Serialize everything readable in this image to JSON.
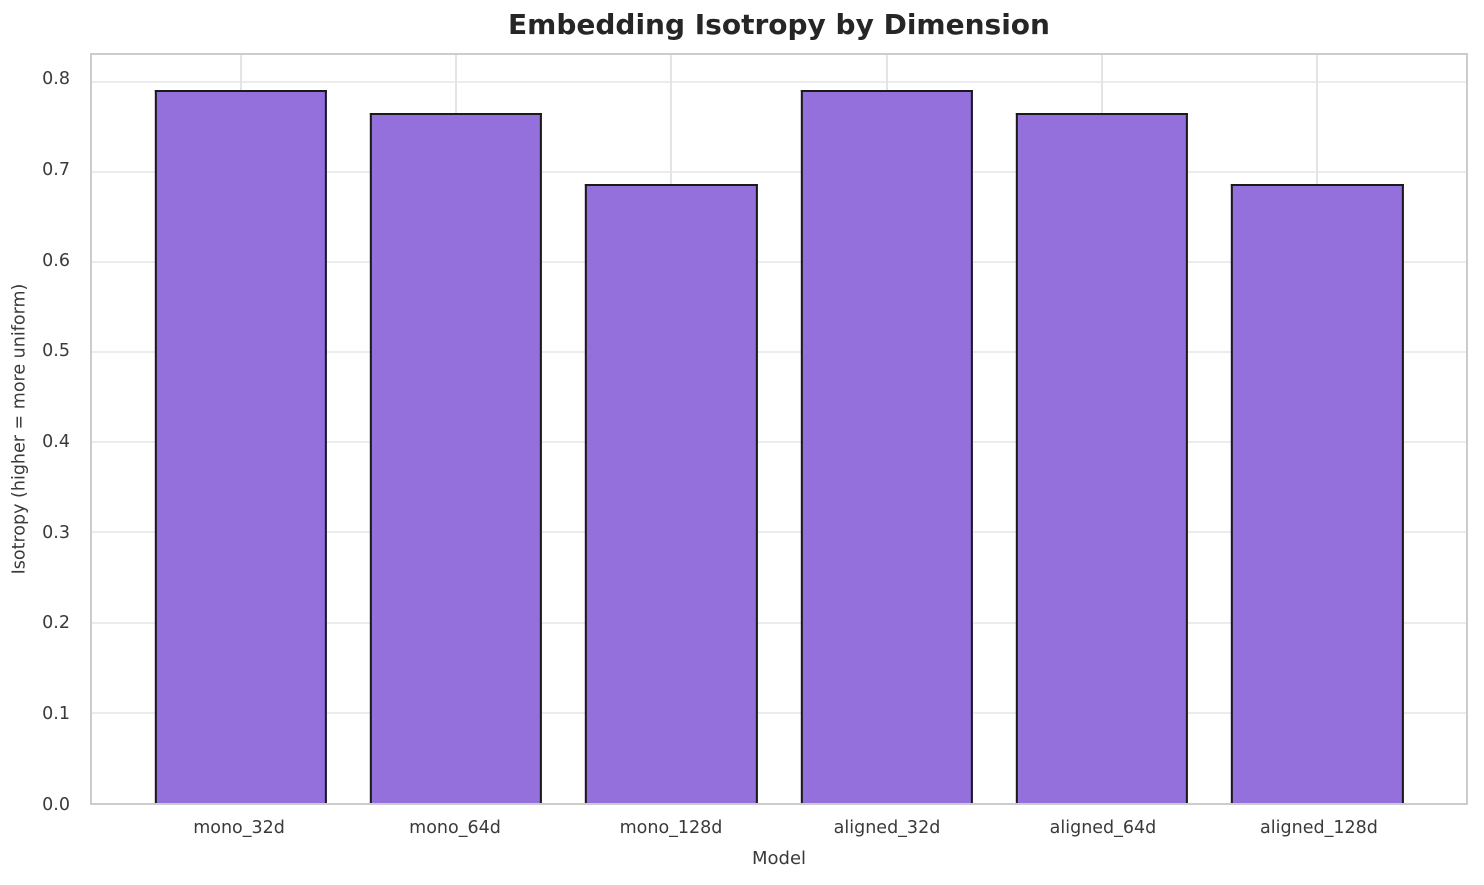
{
  "chart_data": {
    "type": "bar",
    "title": "Embedding Isotropy by Dimension",
    "xlabel": "Model",
    "ylabel": "Isotropy (higher = more uniform)",
    "categories": [
      "mono_32d",
      "mono_64d",
      "mono_128d",
      "aligned_32d",
      "aligned_64d",
      "aligned_128d"
    ],
    "values": [
      0.791,
      0.765,
      0.686,
      0.791,
      0.765,
      0.686
    ],
    "yticks": [
      "0.0",
      "0.1",
      "0.2",
      "0.3",
      "0.4",
      "0.5",
      "0.6",
      "0.7",
      "0.8"
    ],
    "ytick_values": [
      0.0,
      0.1,
      0.2,
      0.3,
      0.4,
      0.5,
      0.6,
      0.7,
      0.8
    ],
    "ylim": [
      0,
      0.8295
    ],
    "grid": "both",
    "legend": "none",
    "colors": {
      "bar_fill": "#9370DB",
      "bar_edge": "#1a1a1a",
      "grid_h": "#ececec",
      "grid_v": "#e4e4e4",
      "spine": "#cccccc",
      "text": "#3a3a3a",
      "title_text": "#262626"
    }
  }
}
